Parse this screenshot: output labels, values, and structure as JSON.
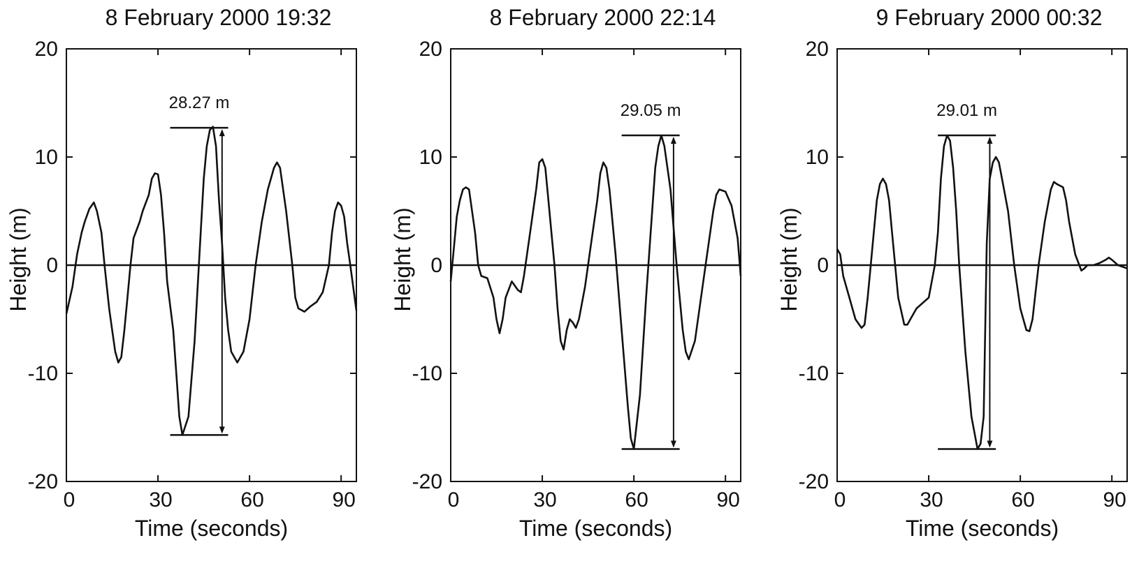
{
  "chart_data": [
    {
      "type": "line",
      "title": "8 February 2000 19:32",
      "xlabel": "Time (seconds)",
      "ylabel": "Height (m)",
      "xlim": [
        0,
        95
      ],
      "ylim": [
        -20,
        20
      ],
      "xticks": [
        0,
        30,
        60,
        90
      ],
      "yticks": [
        20,
        10,
        0,
        -10,
        -20
      ],
      "grid": false,
      "reference_line_y": 0,
      "annotation": {
        "label": "28.27 m",
        "x_start": 34,
        "x_end": 53,
        "arrow_x": 51,
        "y_top": 12.7,
        "y_bottom": -15.7
      },
      "series": [
        {
          "x": [
            0,
            2,
            3.5,
            5,
            6,
            7.5,
            9,
            10,
            11.5,
            12.5,
            14,
            15,
            16,
            17,
            18,
            19,
            20,
            21,
            22,
            24,
            25,
            27,
            28,
            29,
            30,
            31,
            32,
            33,
            35,
            36,
            37,
            38,
            40,
            42,
            44,
            45,
            46,
            47,
            48,
            49,
            50,
            51,
            52,
            53,
            54,
            56,
            58,
            60,
            62,
            64,
            66,
            67,
            68,
            69,
            70,
            72,
            74,
            75,
            76,
            78,
            80,
            82,
            84,
            86,
            87,
            88,
            89,
            90,
            91,
            92,
            93,
            95
          ],
          "y": [
            -4.5,
            -2,
            1,
            3,
            4,
            5.2,
            5.8,
            5,
            3,
            0,
            -4,
            -6,
            -8,
            -9,
            -8.5,
            -6,
            -3,
            0,
            2.5,
            4,
            5,
            6.5,
            8,
            8.5,
            8.4,
            6.5,
            3,
            -1.5,
            -6,
            -10,
            -14,
            -15.7,
            -14,
            -7,
            3,
            8,
            11,
            12.5,
            12.8,
            11,
            6,
            2,
            -3,
            -6,
            -8,
            -9,
            -8,
            -5,
            0,
            4,
            7,
            8,
            9,
            9.5,
            9,
            5,
            0,
            -3,
            -4,
            -4.3,
            -3.8,
            -3.4,
            -2.5,
            0,
            3,
            5,
            5.8,
            5.5,
            4.5,
            2,
            0,
            -4.2
          ]
        }
      ]
    },
    {
      "type": "line",
      "title": "8 February 2000 22:14",
      "xlabel": "Time (seconds)",
      "ylabel": "Height (m)",
      "xlim": [
        0,
        95
      ],
      "ylim": [
        -20,
        20
      ],
      "xticks": [
        0,
        30,
        60,
        90
      ],
      "yticks": [
        20,
        10,
        0,
        -10,
        -20
      ],
      "grid": false,
      "reference_line_y": 0,
      "annotation": {
        "label": "29.05 m",
        "x_start": 56,
        "x_end": 75,
        "arrow_x": 73,
        "y_top": 12,
        "y_bottom": -17
      },
      "series": [
        {
          "x": [
            0,
            1,
            2,
            3,
            4,
            5,
            6,
            8,
            9,
            10,
            12,
            14,
            15,
            16,
            17,
            18,
            20,
            22,
            23,
            24,
            26,
            28,
            29,
            30,
            31,
            32,
            34,
            35,
            36,
            37,
            38,
            39,
            40,
            41,
            42,
            44,
            46,
            48,
            49,
            50,
            51,
            52,
            54,
            56,
            58,
            59,
            60,
            62,
            64,
            66,
            67,
            68,
            69,
            70,
            72,
            74,
            76,
            77,
            78,
            80,
            82,
            84,
            86,
            87,
            88,
            90,
            92,
            94,
            95
          ],
          "y": [
            -1.5,
            1.5,
            4.5,
            6,
            7,
            7.2,
            7,
            3,
            0,
            -1,
            -1.2,
            -3,
            -5,
            -6.3,
            -5,
            -3,
            -1.5,
            -2.3,
            -2.5,
            -1,
            3,
            7,
            9.5,
            9.8,
            9,
            6,
            0,
            -4,
            -7,
            -7.8,
            -6,
            -5,
            -5.3,
            -5.8,
            -5,
            -2,
            2,
            6,
            8.5,
            9.5,
            9,
            7,
            1,
            -6,
            -13,
            -16,
            -17,
            -12,
            -3,
            5,
            9,
            11,
            12,
            11,
            7,
            0,
            -6,
            -8,
            -8.7,
            -7,
            -3,
            1,
            5,
            6.5,
            7,
            6.8,
            5.5,
            2.5,
            -1
          ]
        }
      ]
    },
    {
      "type": "line",
      "title": "9 February 2000 00:32",
      "xlabel": "Time (seconds)",
      "ylabel": "Height (m)",
      "xlim": [
        0,
        95
      ],
      "ylim": [
        -20,
        20
      ],
      "xticks": [
        0,
        30,
        60,
        90
      ],
      "yticks": [
        20,
        10,
        0,
        -10,
        -20
      ],
      "grid": false,
      "reference_line_y": 0,
      "annotation": {
        "label": "29.01 m",
        "x_start": 33,
        "x_end": 52,
        "arrow_x": 50,
        "y_top": 12,
        "y_bottom": -17
      },
      "series": [
        {
          "x": [
            0,
            1,
            2,
            4,
            6,
            8,
            9,
            10,
            11,
            12,
            13,
            14,
            15,
            16,
            17,
            18,
            19,
            20,
            22,
            23,
            24,
            26,
            28,
            30,
            32,
            33,
            34,
            35,
            36,
            37,
            38,
            39,
            40,
            41,
            42,
            44,
            46,
            47,
            48,
            48.5,
            49,
            50,
            51,
            52,
            53,
            54,
            56,
            58,
            60,
            62,
            63,
            64,
            66,
            68,
            70,
            71,
            72,
            74,
            75,
            76,
            78,
            80,
            81,
            82,
            84,
            86,
            88,
            89,
            90,
            92,
            95
          ],
          "y": [
            1.5,
            1,
            -1,
            -3,
            -5,
            -5.8,
            -5.5,
            -3,
            0,
            3,
            6,
            7.5,
            8,
            7.5,
            6,
            3,
            0,
            -3,
            -5.5,
            -5.5,
            -5,
            -4,
            -3.5,
            -3,
            0,
            3,
            8,
            11,
            12,
            11.5,
            9,
            5,
            0,
            -4,
            -8,
            -14,
            -17,
            -16.5,
            -14,
            -6,
            2,
            8,
            9.5,
            10,
            9.5,
            8,
            5,
            0,
            -4,
            -6,
            -6.1,
            -5,
            0,
            4,
            7,
            7.7,
            7.5,
            7.2,
            6,
            4,
            1,
            -0.5,
            -0.3,
            0,
            0,
            0.2,
            0.5,
            0.7,
            0.5,
            0,
            -0.3
          ]
        }
      ]
    }
  ]
}
